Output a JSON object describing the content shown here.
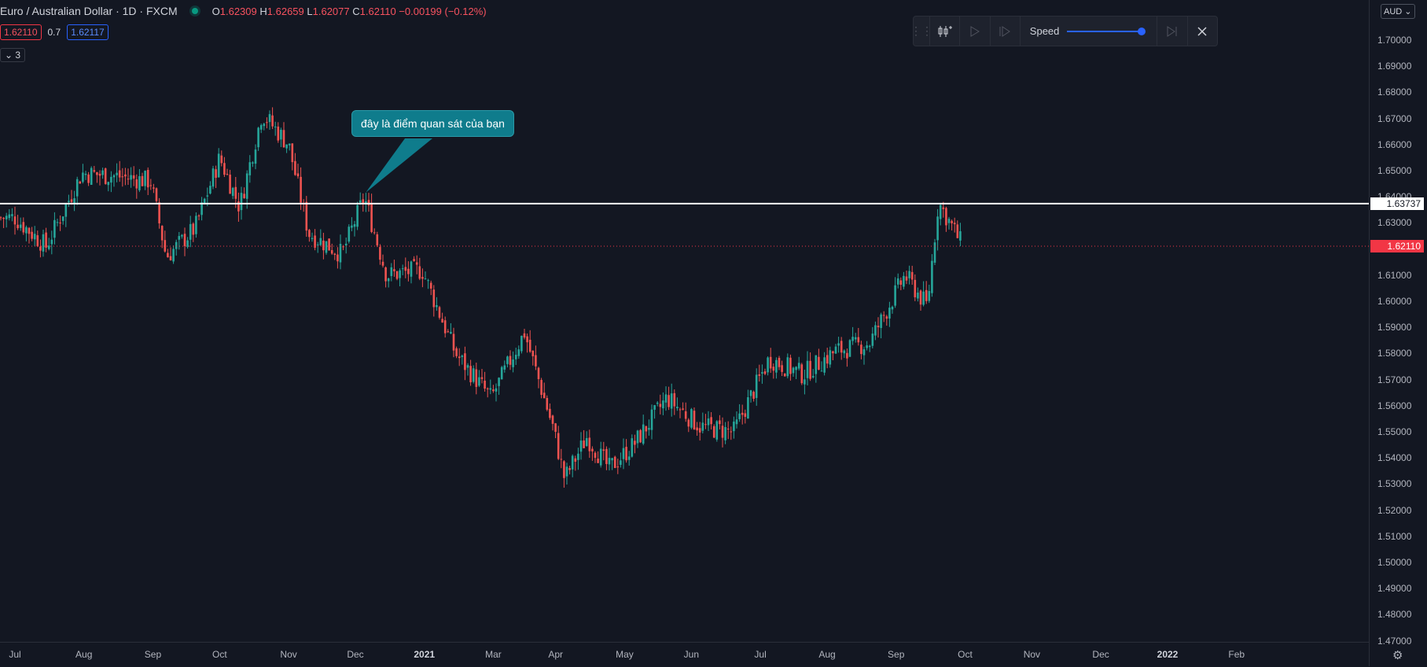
{
  "header": {
    "symbol": "Euro / Australian Dollar · 1D · FXCM",
    "o_label": "O",
    "o_value": "1.62309",
    "h_label": "H",
    "h_value": "1.62659",
    "l_label": "L",
    "l_value": "1.62077",
    "c_label": "C",
    "c_value": "1.62110",
    "change": "−0.00199 (−0.12%)",
    "bid": "1.62110",
    "spread": "0.7",
    "ask": "1.62117",
    "indicator_count": "3"
  },
  "replay": {
    "speed_label": "Speed",
    "speed_level": 1.0
  },
  "price_axis": {
    "currency": "AUD",
    "ticks": [
      "1.70000",
      "1.69000",
      "1.68000",
      "1.67000",
      "1.66000",
      "1.65000",
      "1.64000",
      "1.63000",
      "1.62000",
      "1.61000",
      "1.60000",
      "1.59000",
      "1.58000",
      "1.57000",
      "1.56000",
      "1.55000",
      "1.54000",
      "1.53000",
      "1.52000",
      "1.51000",
      "1.50000",
      "1.49000",
      "1.48000",
      "1.47000"
    ],
    "hline_label": "1.63737",
    "last_price_label": "1.62110"
  },
  "time_axis": {
    "labels": [
      "Jul",
      "Aug",
      "Sep",
      "Oct",
      "Nov",
      "Dec",
      "2021",
      "Mar",
      "Apr",
      "May",
      "Jun",
      "Jul",
      "Aug",
      "Sep",
      "Oct",
      "Nov",
      "Dec",
      "2022",
      "Feb"
    ]
  },
  "annotation": {
    "text": "đây là điểm quan sát của bạn"
  },
  "chart_data": {
    "type": "candlestick",
    "ylim": [
      1.465,
      1.715
    ],
    "horizontal_line": 1.63737,
    "last_price": 1.6211,
    "colors": {
      "up": "#26a69a",
      "down": "#ef5350",
      "hline": "#ffffff",
      "last": "#f23645"
    },
    "series": [
      {
        "date": "2020-07-01",
        "close": 1.632
      },
      {
        "date": "2020-07-15",
        "close": 1.621
      },
      {
        "date": "2020-07-31",
        "close": 1.649
      },
      {
        "date": "2020-08-15",
        "close": 1.648
      },
      {
        "date": "2020-08-31",
        "close": 1.646
      },
      {
        "date": "2020-09-07",
        "close": 1.617
      },
      {
        "date": "2020-09-20",
        "close": 1.628
      },
      {
        "date": "2020-10-01",
        "close": 1.655
      },
      {
        "date": "2020-10-10",
        "close": 1.636
      },
      {
        "date": "2020-10-20",
        "close": 1.672
      },
      {
        "date": "2020-11-01",
        "close": 1.66
      },
      {
        "date": "2020-11-10",
        "close": 1.626
      },
      {
        "date": "2020-11-25",
        "close": 1.618
      },
      {
        "date": "2020-12-05",
        "close": 1.64
      },
      {
        "date": "2020-12-15",
        "close": 1.61
      },
      {
        "date": "2020-12-31",
        "close": 1.612
      },
      {
        "date": "2021-01-15",
        "close": 1.58
      },
      {
        "date": "2021-01-31",
        "close": 1.563
      },
      {
        "date": "2021-02-15",
        "close": 1.588
      },
      {
        "date": "2021-02-28",
        "close": 1.551
      },
      {
        "date": "2021-03-05",
        "close": 1.532
      },
      {
        "date": "2021-03-15",
        "close": 1.548
      },
      {
        "date": "2021-03-25",
        "close": 1.536
      },
      {
        "date": "2021-04-05",
        "close": 1.545
      },
      {
        "date": "2021-04-20",
        "close": 1.563
      },
      {
        "date": "2021-05-05",
        "close": 1.552
      },
      {
        "date": "2021-05-20",
        "close": 1.55
      },
      {
        "date": "2021-06-05",
        "close": 1.578
      },
      {
        "date": "2021-06-20",
        "close": 1.572
      },
      {
        "date": "2021-07-05",
        "close": 1.581
      },
      {
        "date": "2021-07-20",
        "close": 1.584
      },
      {
        "date": "2021-08-05",
        "close": 1.61
      },
      {
        "date": "2021-08-15",
        "close": 1.598
      },
      {
        "date": "2021-08-20",
        "close": 1.638
      },
      {
        "date": "2021-08-31",
        "close": 1.6211
      }
    ]
  }
}
